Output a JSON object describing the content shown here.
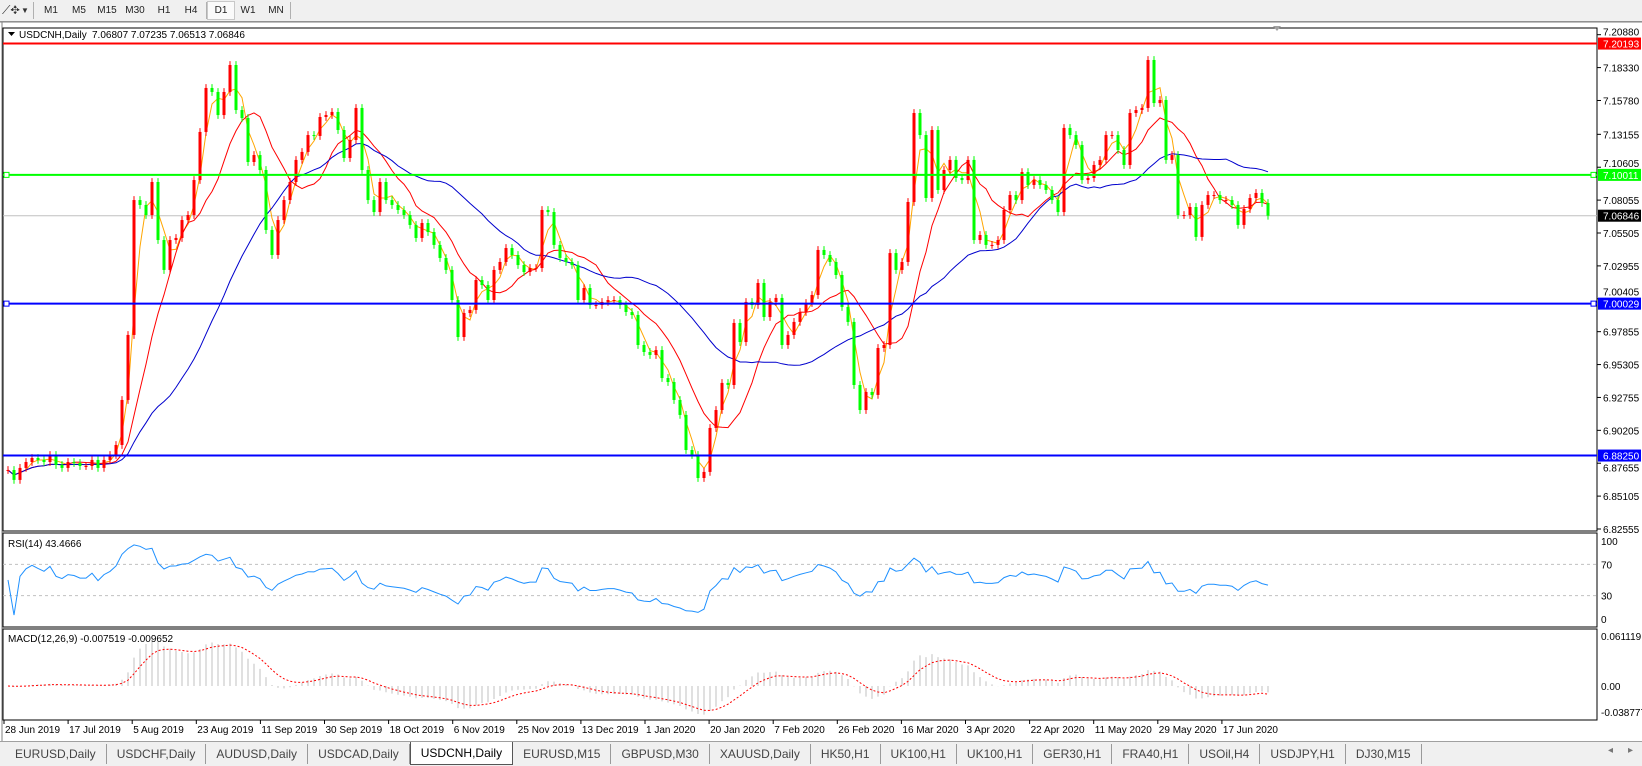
{
  "toolbar": {
    "icons": [
      "line-tools-icon",
      "dropdown-arrow-icon"
    ],
    "timeframes": [
      "M1",
      "M5",
      "M15",
      "M30",
      "H1",
      "H4",
      "D1",
      "W1",
      "MN"
    ],
    "active_timeframe": "D1"
  },
  "chart_header": {
    "symbol": "USDCNH,Daily",
    "ohlc": "7.06807 7.07235 7.06513 7.06846"
  },
  "tabs": [
    {
      "label": "EURUSD,Daily"
    },
    {
      "label": "USDCHF,Daily"
    },
    {
      "label": "AUDUSD,Daily"
    },
    {
      "label": "USDCAD,Daily"
    },
    {
      "label": "USDCNH,Daily",
      "active": true
    },
    {
      "label": "EURUSD,M15"
    },
    {
      "label": "GBPUSD,M30"
    },
    {
      "label": "XAUUSD,Daily"
    },
    {
      "label": "HK50,H1"
    },
    {
      "label": "UK100,H1"
    },
    {
      "label": "UK100,H1"
    },
    {
      "label": "GER30,H1"
    },
    {
      "label": "FRA40,H1"
    },
    {
      "label": "USOil,H4"
    },
    {
      "label": "USDJPY,H1"
    },
    {
      "label": "DJ30,M15"
    }
  ],
  "tab_scroll": {
    "left": "◂",
    "right": "▸"
  },
  "chart_data": {
    "type": "candlestick",
    "symbol": "USDCNH",
    "timeframe": "Daily",
    "bull_color": "#ff0000",
    "bear_color": "#00ff00",
    "ylim": [
      6.82555,
      7.2088
    ],
    "y_ticks": [
      "7.20880",
      "7.18330",
      "7.15780",
      "7.13155",
      "7.10605",
      "7.08055",
      "7.05505",
      "7.02955",
      "7.00405",
      "6.97855",
      "6.95305",
      "6.92755",
      "6.90205",
      "6.87655",
      "6.85105",
      "6.82555"
    ],
    "x_labels": [
      "28 Jun 2019",
      "17 Jul 2019",
      "5 Aug 2019",
      "23 Aug 2019",
      "11 Sep 2019",
      "30 Sep 2019",
      "18 Oct 2019",
      "6 Nov 2019",
      "25 Nov 2019",
      "13 Dec 2019",
      "1 Jan 2020",
      "20 Jan 2020",
      "7 Feb 2020",
      "26 Feb 2020",
      "16 Mar 2020",
      "3 Apr 2020",
      "22 Apr 2020",
      "11 May 2020",
      "29 May 2020",
      "17 Jun 2020"
    ],
    "close": [
      6.8713,
      6.8636,
      6.8729,
      6.8775,
      6.8806,
      6.8791,
      6.8775,
      6.8829,
      6.8752,
      6.8729,
      6.8775,
      6.8767,
      6.8744,
      6.8744,
      6.8791,
      6.8729,
      6.8791,
      6.8829,
      6.8907,
      6.9256,
      6.976,
      7.0806,
      7.0768,
      7.069,
      7.0946,
      7.0496,
      7.0264,
      7.0496,
      7.0512,
      7.0651,
      7.069,
      7.0961,
      7.1334,
      7.1675,
      7.1644,
      7.1465,
      7.1644,
      7.1853,
      7.1504,
      7.1442,
      7.1101,
      7.1155,
      7.1039,
      7.0574,
      7.038,
      7.0651,
      7.0806,
      7.0946,
      7.1117,
      7.1179,
      7.131,
      7.1303,
      7.145,
      7.1465,
      7.1489,
      7.1349,
      7.1132,
      7.1272,
      7.152,
      7.1039,
      7.0806,
      7.0713,
      7.0946,
      7.0806,
      7.0768,
      7.0729,
      7.069,
      7.0613,
      7.0512,
      7.0628,
      7.0558,
      7.0458,
      7.0357,
      7.0264,
      7.0031,
      6.9744,
      6.993,
      6.9954,
      7.0186,
      7.0147,
      7.0031,
      7.0264,
      7.0326,
      7.0434,
      7.038,
      7.0302,
      7.0248,
      7.0279,
      7.0279,
      7.0729,
      7.0713,
      7.0458,
      7.0357,
      7.0326,
      7.0302,
      7.0031,
      7.0124,
      6.9992,
      6.9992,
      7.0016,
      7.0031,
      7.0031,
      6.9992,
      6.9938,
      6.9915,
      6.9682,
      6.9628,
      6.9605,
      6.9643,
      6.9426,
      6.9395,
      6.9256,
      6.914,
      6.8868,
      6.8829,
      6.8651,
      6.8698,
      6.9039,
      6.9178,
      6.9388,
      6.9372,
      6.9853,
      6.9705,
      7.0016,
      6.9992,
      7.0163,
      6.9899,
      7.0016,
      7.0047,
      6.9682,
      6.976,
      6.9861,
      6.9938,
      7.0008,
      7.007,
      7.0419,
      7.038,
      7.0326,
      7.0225,
      6.9977,
      6.9861,
      6.9372,
      6.9178,
      6.9318,
      6.9295,
      6.9659,
      6.9682,
      7.0395,
      7.0264,
      7.0326,
      7.0791,
      7.1481,
      7.131,
      7.0822,
      7.1349,
      7.0884,
      7.1039,
      7.1117,
      7.0977,
      7.0961,
      7.1117,
      7.0496,
      7.0535,
      7.0458,
      7.0458,
      7.0496,
      7.0729,
      7.0845,
      7.0806,
      7.1023,
      7.0923,
      7.0961,
      7.0923,
      7.0884,
      7.0806,
      7.0713,
      7.1365,
      7.131,
      7.1233,
      7.0961,
      7.0977,
      7.1078,
      7.1117,
      7.131,
      7.131,
      7.1194,
      7.1078,
      7.1481,
      7.1504,
      7.152,
      7.1892,
      7.1558,
      7.1582,
      7.1117,
      7.1155,
      7.069,
      7.069,
      7.0752,
      7.052,
      7.0768,
      7.0845,
      7.0845,
      7.0806,
      7.0806,
      7.0768,
      7.0613,
      7.0737,
      7.0822,
      7.0861,
      7.0783,
      7.06846
    ],
    "moving_averages": [
      {
        "color": "#ffa500"
      },
      {
        "color": "#ff0000"
      },
      {
        "color": "#0000cd"
      }
    ],
    "horizontal_lines": [
      {
        "price": "7.20193",
        "color": "#ff0000"
      },
      {
        "price": "7.10011",
        "color": "#00ff00"
      },
      {
        "price": "7.00029",
        "color": "#0000ff"
      },
      {
        "price": "6.88250",
        "color": "#0000ff"
      }
    ],
    "current_price": {
      "price": "7.06846",
      "color": "#000000",
      "line_color": "#c0c0c0"
    },
    "rsi": {
      "label": "RSI(14) 43.4666",
      "value": 43.4666,
      "levels": [
        "70",
        "30"
      ],
      "scale": [
        "100",
        "70",
        "30",
        "0"
      ],
      "color": "#1e90ff"
    },
    "macd": {
      "label": "MACD(12,26,9) -0.007519 -0.009652",
      "main": -0.007519,
      "signal": -0.009652,
      "scale": [
        "0.061119",
        "0.00",
        "-0.038777"
      ],
      "hist_color": "#c0c0c0",
      "signal_color": "#ff0000"
    }
  }
}
